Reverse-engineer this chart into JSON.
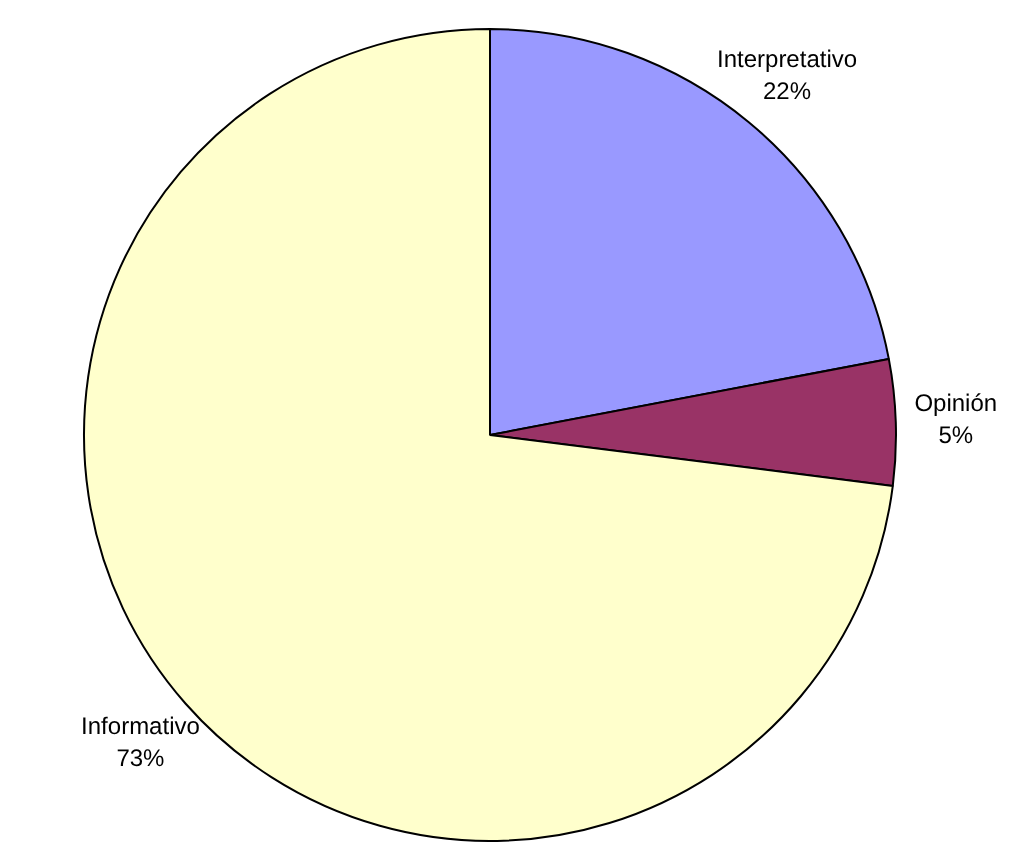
{
  "chart_data": {
    "type": "pie",
    "categories": [
      "Interpretativo",
      "Opinión",
      "Informativo"
    ],
    "values": [
      22,
      5,
      73
    ],
    "colors": [
      "#9999ff",
      "#993366",
      "#ffffcc"
    ],
    "value_labels": [
      "22%",
      "5%",
      "73%"
    ],
    "legend": false
  }
}
